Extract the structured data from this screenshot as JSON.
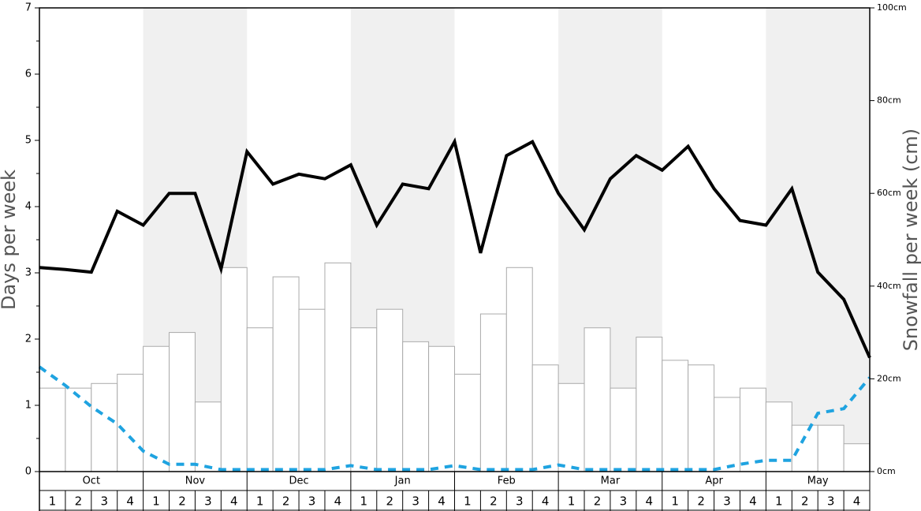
{
  "chart_data": {
    "type": "combo",
    "y_label": "Days per week",
    "y2_label": "Snowfall per week (cm)",
    "months": [
      "Oct",
      "Nov",
      "Dec",
      "Jan",
      "Feb",
      "Mar",
      "Apr",
      "May"
    ],
    "categories": [
      "1",
      "2",
      "3",
      "4",
      "1",
      "2",
      "3",
      "4",
      "1",
      "2",
      "3",
      "4",
      "1",
      "2",
      "3",
      "4",
      "1",
      "2",
      "3",
      "4",
      "1",
      "2",
      "3",
      "4",
      "1",
      "2",
      "3",
      "4",
      "1",
      "2",
      "3",
      "4"
    ],
    "band_color": "#f0f0f0",
    "xlim": [
      0,
      32
    ],
    "ylim": [
      0,
      7
    ],
    "yticks": [
      0,
      1,
      2,
      3,
      4,
      5,
      6,
      7
    ],
    "yminorticks": [
      0.5,
      1.5,
      2.5,
      3.5,
      4.5,
      5.5,
      6.5
    ],
    "y2lim": [
      0,
      100
    ],
    "y2ticks": [
      {
        "value": 0,
        "label": "0cm"
      },
      {
        "value": 20,
        "label": "20cm"
      },
      {
        "value": 40,
        "label": "40cm"
      },
      {
        "value": 60,
        "label": "60cm"
      },
      {
        "value": 80,
        "label": "80cm"
      },
      {
        "value": 100,
        "label": "100cm"
      }
    ],
    "series": [
      {
        "type": "bar",
        "axis": "y2",
        "color": "#ffffff",
        "edge": "#aaaaaa",
        "values": [
          18,
          18,
          19,
          21,
          27,
          30,
          15,
          44,
          31,
          42,
          35,
          45,
          31,
          35,
          28,
          27,
          21,
          34,
          44,
          23,
          19,
          31,
          18,
          29,
          24,
          23,
          16,
          18,
          15,
          10,
          10,
          6
        ]
      },
      {
        "type": "line",
        "color": "#000000",
        "width": 4,
        "x": [
          0,
          1,
          2,
          3,
          4,
          5,
          6,
          7,
          8,
          9,
          10,
          11,
          12,
          13,
          14,
          15,
          16,
          17,
          18,
          19,
          20,
          21,
          22,
          23,
          24,
          25,
          26,
          27,
          28,
          29,
          30,
          31,
          32
        ],
        "values": [
          3.08,
          3.05,
          3.01,
          3.93,
          3.72,
          4.2,
          4.2,
          3.06,
          4.83,
          4.34,
          4.49,
          4.42,
          4.63,
          3.72,
          4.34,
          4.27,
          4.98,
          3.3,
          4.77,
          4.98,
          4.2,
          3.65,
          4.42,
          4.77,
          4.55,
          4.91,
          4.27,
          3.79,
          3.72,
          4.27,
          3.01,
          2.6,
          1.72
        ]
      },
      {
        "type": "line",
        "color": "#1fa3e0",
        "width": 4,
        "dashed": true,
        "x": [
          0,
          1,
          2,
          3,
          4,
          5,
          6,
          7,
          8,
          9,
          10,
          11,
          12,
          13,
          14,
          15,
          16,
          17,
          18,
          19,
          20,
          21,
          22,
          23,
          24,
          25,
          26,
          27,
          28,
          29,
          30,
          31,
          32
        ],
        "values": [
          1.58,
          1.3,
          0.98,
          0.72,
          0.31,
          0.11,
          0.11,
          0.03,
          0.03,
          0.03,
          0.03,
          0.03,
          0.09,
          0.03,
          0.03,
          0.03,
          0.09,
          0.03,
          0.03,
          0.03,
          0.1,
          0.03,
          0.03,
          0.03,
          0.03,
          0.03,
          0.03,
          0.11,
          0.17,
          0.17,
          0.88,
          0.95,
          1.42
        ]
      }
    ]
  }
}
